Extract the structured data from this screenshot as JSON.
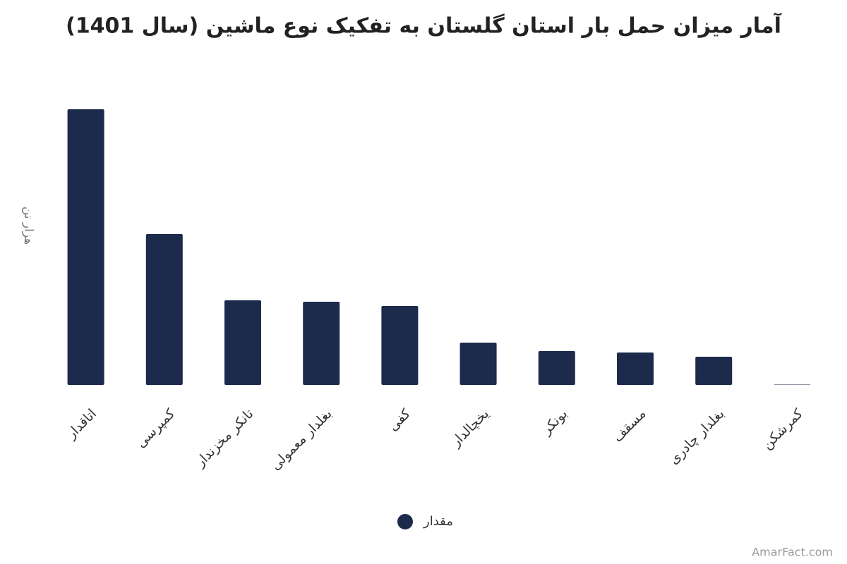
{
  "chart_data": {
    "type": "bar",
    "title": "آمار میزان حمل بار استان گلستان به تفکیک نوع ماشین (سال 1401)",
    "y_label": "هزار تن",
    "categories": [
      "اتاقدار",
      "کمپرسی",
      "تانکر مخزندار",
      "بغلدار معمولی",
      "کفی",
      "یخچالدار",
      "بونکر",
      "مسقف",
      "بغلدار چادری",
      "کمرشکن"
    ],
    "series": [
      {
        "name": "مقدار",
        "color": "#1c2a4b",
        "values": [
          391,
          214,
          120,
          118,
          112,
          60,
          48,
          46,
          40,
          0.5
        ]
      }
    ],
    "ylim": [
      0,
      400
    ],
    "legend": "bottom",
    "watermark": "AmarFact.com"
  }
}
